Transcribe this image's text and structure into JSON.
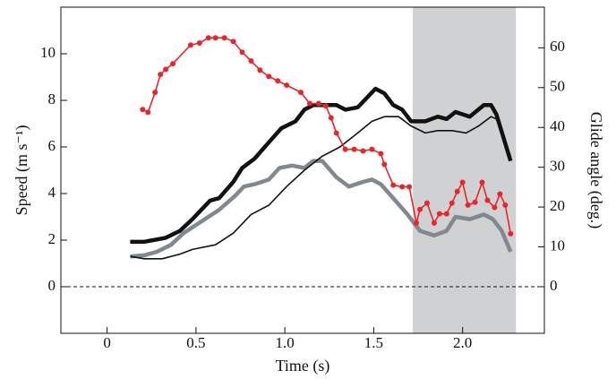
{
  "chart_data": {
    "type": "line",
    "x_label": "Time (s)",
    "y_label": "Speed (m s⁻¹)",
    "y2_label": "Glide angle (deg.)",
    "xlim": [
      -0.26,
      2.46
    ],
    "xticks": [
      0,
      0.5,
      {
        "value": 1,
        "label": "1.0"
      },
      1.5,
      {
        "value": 2,
        "label": "2.0"
      }
    ],
    "ylim": [
      -2,
      12
    ],
    "yticks": [
      0,
      2,
      4,
      6,
      8,
      10
    ],
    "y2lim": [
      -11.7,
      70.2
    ],
    "y2ticks": [
      0,
      10,
      20,
      30,
      40,
      50,
      60
    ],
    "reference_y": 0,
    "shade_x": [
      1.72,
      2.3
    ],
    "shade_color": "#d0d1d3",
    "series": [
      {
        "color": "#808890",
        "width": 4.5,
        "markers": false,
        "x": [
          0.13,
          0.21,
          0.28,
          0.36,
          0.43,
          0.53,
          0.63,
          0.72,
          0.77,
          0.83,
          0.91,
          0.97,
          1.04,
          1.11,
          1.16,
          1.21,
          1.29,
          1.36,
          1.44,
          1.49,
          1.54,
          1.61,
          1.69,
          1.76,
          1.84,
          1.91,
          1.96,
          2.04,
          2.12,
          2.17,
          2.22,
          2.27
        ],
        "values": [
          1.3,
          1.35,
          1.5,
          1.8,
          2.3,
          2.8,
          3.3,
          3.9,
          4.3,
          4.4,
          4.6,
          5.1,
          5.2,
          5.1,
          5.4,
          5.4,
          4.7,
          4.3,
          4.5,
          4.6,
          4.4,
          3.8,
          3.1,
          2.4,
          2.2,
          2.4,
          3.0,
          2.9,
          3.1,
          2.9,
          2.4,
          1.5
        ]
      },
      {
        "color": "#111111",
        "width": 4.5,
        "markers": false,
        "x": [
          0.13,
          0.21,
          0.26,
          0.33,
          0.41,
          0.48,
          0.58,
          0.63,
          0.71,
          0.76,
          0.83,
          0.91,
          0.98,
          1.06,
          1.11,
          1.16,
          1.21,
          1.29,
          1.34,
          1.41,
          1.46,
          1.51,
          1.56,
          1.61,
          1.66,
          1.71,
          1.79,
          1.86,
          1.91,
          1.96,
          2.04,
          2.12,
          2.16,
          2.19,
          2.23,
          2.27
        ],
        "values": [
          1.93,
          1.93,
          2.0,
          2.1,
          2.4,
          2.9,
          3.7,
          3.8,
          4.5,
          5.1,
          5.5,
          6.2,
          6.8,
          7.1,
          7.6,
          7.8,
          7.8,
          7.8,
          7.6,
          7.7,
          8.1,
          8.5,
          8.3,
          7.8,
          7.6,
          7.1,
          7.1,
          7.3,
          7.2,
          7.5,
          7.3,
          7.8,
          7.8,
          7.4,
          6.4,
          5.4
        ]
      },
      {
        "color": "#111111",
        "width": 1.6,
        "markers": false,
        "x": [
          0.13,
          0.21,
          0.31,
          0.41,
          0.48,
          0.61,
          0.71,
          0.81,
          0.91,
          1.01,
          1.11,
          1.21,
          1.31,
          1.41,
          1.49,
          1.56,
          1.64,
          1.71,
          1.79,
          1.86,
          1.94,
          2.02,
          2.09,
          2.16,
          2.19,
          2.24,
          2.27
        ],
        "values": [
          1.3,
          1.2,
          1.2,
          1.4,
          1.6,
          1.8,
          2.3,
          3.1,
          3.5,
          4.3,
          5.0,
          5.6,
          6.0,
          6.6,
          7.1,
          7.3,
          7.3,
          6.9,
          6.6,
          6.7,
          6.7,
          6.6,
          6.9,
          7.3,
          7.2,
          6.2,
          5.6
        ]
      },
      {
        "color": "#e8262a",
        "width": 1.6,
        "markers": true,
        "axis": "y2",
        "x": [
          0.2,
          0.23,
          0.27,
          0.3,
          0.33,
          0.37,
          0.47,
          0.52,
          0.57,
          0.61,
          0.66,
          0.71,
          0.76,
          0.81,
          0.86,
          0.91,
          0.96,
          1.01,
          1.09,
          1.14,
          1.19,
          1.23,
          1.26,
          1.29,
          1.34,
          1.39,
          1.44,
          1.49,
          1.54,
          1.56,
          1.61,
          1.66,
          1.7,
          1.74,
          1.76,
          1.8,
          1.84,
          1.87,
          1.91,
          1.94,
          1.97,
          2.0,
          2.03,
          2.07,
          2.11,
          2.14,
          2.18,
          2.21,
          2.24,
          2.27
        ],
        "values": [
          44.5,
          43.8,
          48.8,
          53.3,
          54.6,
          56.0,
          60.7,
          61.2,
          62.5,
          62.5,
          62.5,
          61.6,
          58.9,
          56.7,
          54.4,
          52.8,
          51.7,
          50.6,
          48.8,
          46.0,
          46.0,
          45.4,
          42.4,
          38.6,
          34.5,
          34.5,
          34.1,
          34.5,
          33.4,
          30.7,
          25.5,
          25.1,
          25.1,
          16.0,
          19.4,
          21.0,
          16.0,
          18.3,
          18.3,
          21.0,
          23.9,
          26.2,
          20.5,
          21.2,
          26.2,
          21.7,
          19.9,
          23.3,
          20.5,
          13.3
        ]
      }
    ]
  }
}
